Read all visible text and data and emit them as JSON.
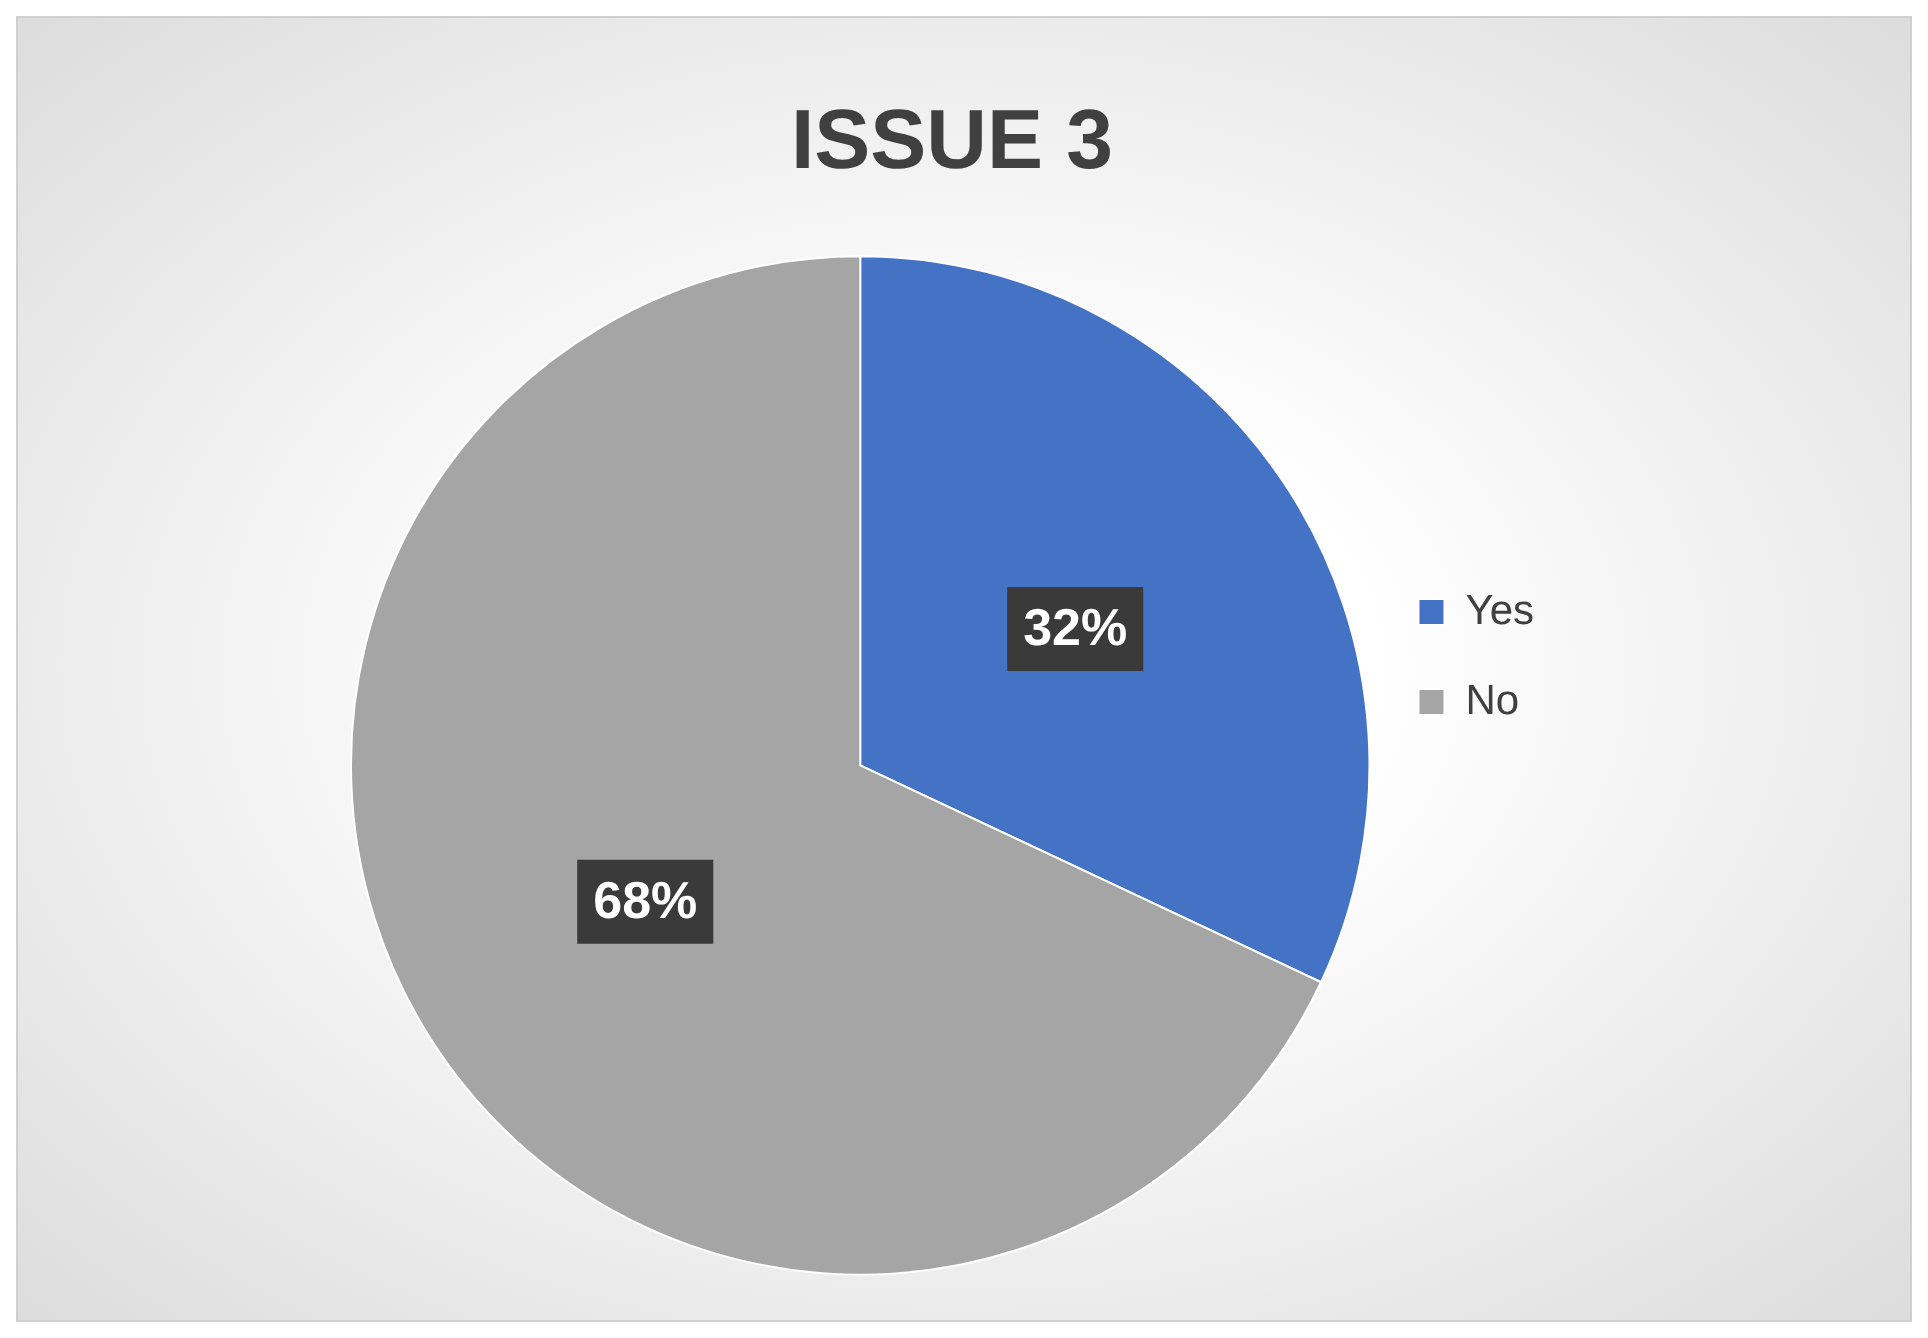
{
  "chart_data": {
    "type": "pie",
    "title": "ISSUE 3",
    "categories": [
      "Yes",
      "No"
    ],
    "values": [
      32,
      68
    ],
    "colors": [
      "#4472c4",
      "#a5a5a5"
    ],
    "value_labels": [
      "32%",
      "68%"
    ],
    "legend": "right"
  }
}
